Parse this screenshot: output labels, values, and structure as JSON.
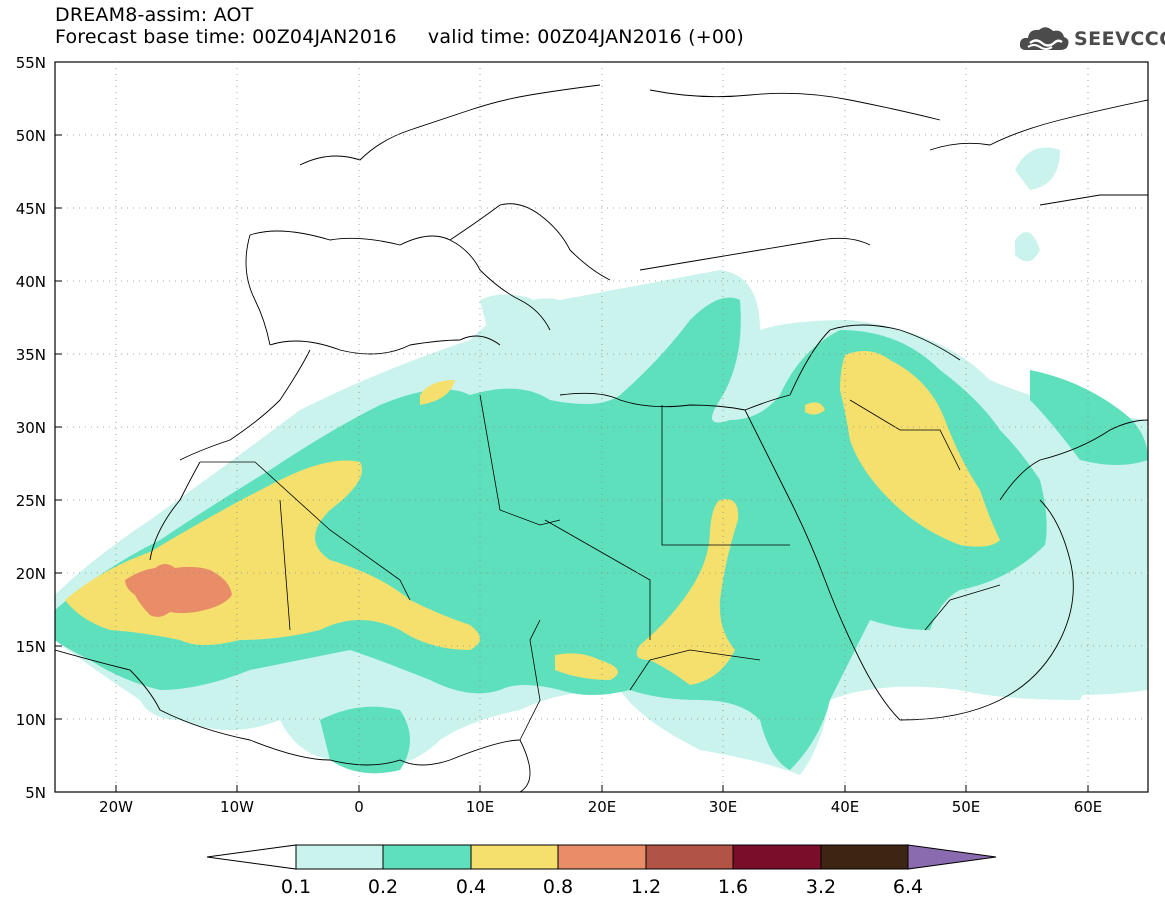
{
  "header": {
    "title": "DREAM8-assim: AOT",
    "subtitle": "Forecast base time: 00Z04JAN2016     valid time: 00Z04JAN2016 (+00)",
    "logo_text": "SEEVCCC"
  },
  "axes": {
    "lat_labels": [
      "55N",
      "50N",
      "45N",
      "40N",
      "35N",
      "30N",
      "25N",
      "20N",
      "15N",
      "10N",
      "5N"
    ],
    "lon_labels": [
      "20W",
      "10W",
      "0",
      "10E",
      "20E",
      "30E",
      "40E",
      "50E",
      "60E"
    ]
  },
  "colorbar": {
    "labels": [
      "0.1",
      "0.2",
      "0.4",
      "0.8",
      "1.2",
      "1.6",
      "3.2",
      "6.4"
    ],
    "colors": [
      "#c9f3ec",
      "#5fe0bd",
      "#f5e06e",
      "#e88d68",
      "#b25445",
      "#7a0d2a",
      "#3c2512",
      "#8b6bb0"
    ]
  },
  "colors": {
    "land_border": "#000000",
    "aot_0_1": "#c9f3ec",
    "aot_0_2": "#5fe0bd",
    "aot_0_4": "#f5e06e",
    "aot_0_8": "#e88d68"
  }
}
